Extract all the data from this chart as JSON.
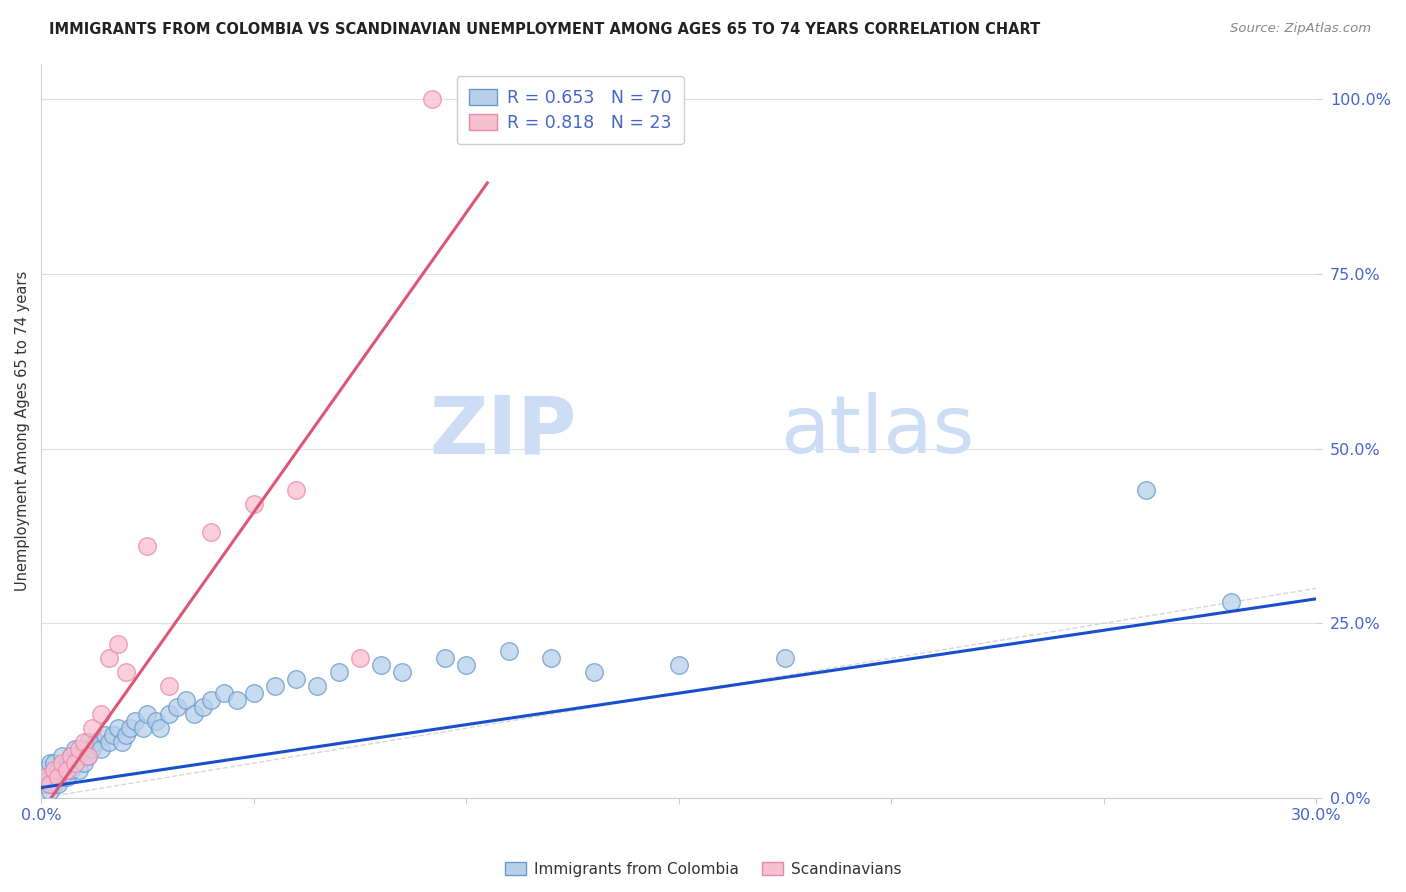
{
  "title": "IMMIGRANTS FROM COLOMBIA VS SCANDINAVIAN UNEMPLOYMENT AMONG AGES 65 TO 74 YEARS CORRELATION CHART",
  "source": "Source: ZipAtlas.com",
  "ylabel": "Unemployment Among Ages 65 to 74 years",
  "xlim": [
    0.0,
    0.3
  ],
  "ylim": [
    0.0,
    1.05
  ],
  "ytick_positions": [
    0.0,
    0.25,
    0.5,
    0.75,
    1.0
  ],
  "ytick_labels": [
    "0.0%",
    "25.0%",
    "50.0%",
    "75.0%",
    "100.0%"
  ],
  "xtick_positions": [
    0.0,
    0.05,
    0.1,
    0.15,
    0.2,
    0.25,
    0.3
  ],
  "xtick_labels": [
    "0.0%",
    "",
    "",
    "",
    "",
    "",
    "30.0%"
  ],
  "colombia_color": "#b8d0ea",
  "colombia_edge": "#6699cc",
  "scandinavian_color": "#f9c0d0",
  "scandinavian_edge": "#e888a8",
  "colombia_line_color": "#1a4fcc",
  "scandinavian_line_color": "#dd5577",
  "diagonal_color": "#cccccc",
  "watermark_zip": "ZIP",
  "watermark_atlas": "atlas",
  "legend_label1": "R = 0.653   N = 70",
  "legend_label2": "R = 0.818   N = 23",
  "legend_text_color": "#4466cc",
  "background_color": "#ffffff",
  "grid_color": "#e0e0e0",
  "colombia_line_x": [
    0.0,
    0.3
  ],
  "colombia_line_y": [
    0.015,
    0.285
  ],
  "scandinavian_line_x": [
    0.0,
    0.105
  ],
  "scandinavian_line_y": [
    -0.02,
    0.88
  ],
  "colombia_x": [
    0.001,
    0.001,
    0.001,
    0.002,
    0.002,
    0.002,
    0.002,
    0.003,
    0.003,
    0.003,
    0.003,
    0.004,
    0.004,
    0.004,
    0.005,
    0.005,
    0.005,
    0.006,
    0.006,
    0.006,
    0.007,
    0.007,
    0.007,
    0.008,
    0.008,
    0.009,
    0.009,
    0.01,
    0.01,
    0.011,
    0.011,
    0.012,
    0.013,
    0.014,
    0.015,
    0.016,
    0.017,
    0.018,
    0.019,
    0.02,
    0.021,
    0.022,
    0.024,
    0.025,
    0.027,
    0.028,
    0.03,
    0.032,
    0.034,
    0.036,
    0.038,
    0.04,
    0.043,
    0.046,
    0.05,
    0.055,
    0.06,
    0.065,
    0.07,
    0.08,
    0.085,
    0.095,
    0.1,
    0.11,
    0.12,
    0.13,
    0.15,
    0.175,
    0.26,
    0.28
  ],
  "colombia_y": [
    0.03,
    0.02,
    0.04,
    0.01,
    0.03,
    0.05,
    0.02,
    0.02,
    0.04,
    0.03,
    0.05,
    0.03,
    0.04,
    0.02,
    0.04,
    0.03,
    0.06,
    0.04,
    0.05,
    0.03,
    0.05,
    0.04,
    0.06,
    0.05,
    0.07,
    0.04,
    0.06,
    0.05,
    0.07,
    0.06,
    0.08,
    0.07,
    0.08,
    0.07,
    0.09,
    0.08,
    0.09,
    0.1,
    0.08,
    0.09,
    0.1,
    0.11,
    0.1,
    0.12,
    0.11,
    0.1,
    0.12,
    0.13,
    0.14,
    0.12,
    0.13,
    0.14,
    0.15,
    0.14,
    0.15,
    0.16,
    0.17,
    0.16,
    0.18,
    0.19,
    0.18,
    0.2,
    0.19,
    0.21,
    0.2,
    0.18,
    0.19,
    0.2,
    0.44,
    0.28
  ],
  "scandinavian_x": [
    0.001,
    0.002,
    0.003,
    0.004,
    0.005,
    0.006,
    0.007,
    0.008,
    0.009,
    0.01,
    0.011,
    0.012,
    0.014,
    0.016,
    0.018,
    0.02,
    0.025,
    0.03,
    0.04,
    0.05,
    0.06,
    0.075,
    0.092
  ],
  "scandinavian_y": [
    0.03,
    0.02,
    0.04,
    0.03,
    0.05,
    0.04,
    0.06,
    0.05,
    0.07,
    0.08,
    0.06,
    0.1,
    0.12,
    0.2,
    0.22,
    0.18,
    0.36,
    0.16,
    0.38,
    0.42,
    0.44,
    0.2,
    1.0
  ]
}
